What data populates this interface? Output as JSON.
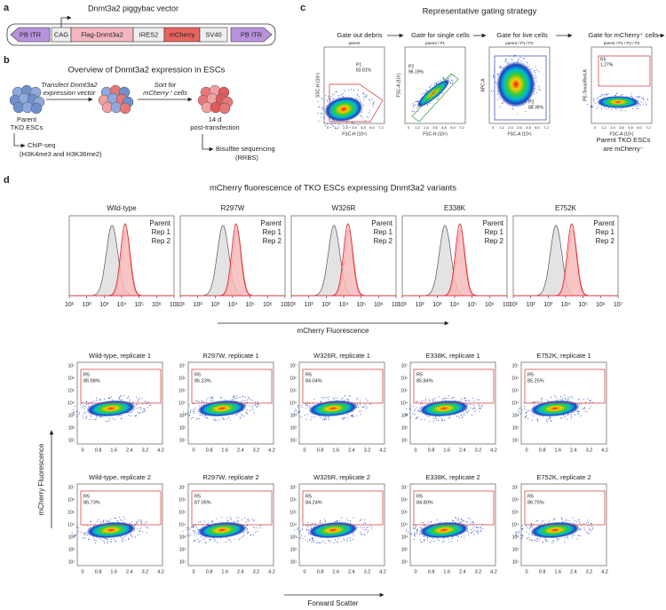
{
  "panel_labels": [
    "a",
    "b",
    "c",
    "d"
  ],
  "a": {
    "title": "Dnmt3a2 piggybac vector",
    "elements": [
      "PB ITR",
      "CAG",
      "Flag-Dnmt3a2",
      "IRES2",
      "mCherry",
      "SV40",
      "PB ITR"
    ]
  },
  "b": {
    "title": "Overview of Dnmt3a2 expression in ESCs",
    "parent": [
      "Parent",
      "TKO ESCs"
    ],
    "step1": [
      "Transfect Dnmt3a2",
      "expression vector"
    ],
    "step2": [
      "Sort for",
      "mCherry⁺ cells"
    ],
    "timepoint": [
      "14 d",
      "post-transfection"
    ],
    "assay1": [
      "ChIP-seq",
      "(H3K4me3 and H3K36me2)"
    ],
    "assay2": [
      "Bisulfite sequencing",
      "(RRBS)"
    ]
  },
  "c": {
    "title": "Representative gating strategy",
    "steps": [
      "Gate out debris",
      "Gate for single cells",
      "Gate for live cells",
      "Gate for mCherry⁺ cells"
    ],
    "xticks": [
      "0",
      "1.2",
      "2.4",
      "3.6",
      "4.8",
      "6.0",
      "7.2"
    ],
    "plots": [
      {
        "header": "parent",
        "gate": "P1",
        "percent": "83.81%",
        "x_label": "FSC-H (10⁶)",
        "y_label": "SSC-H (10⁶)"
      },
      {
        "header": "parent / P1",
        "gate": "P2",
        "percent": "96.19%",
        "x_label": "FSC-H (10⁶)",
        "y_label": "FSC-A (10⁶)"
      },
      {
        "header": "parent / P1 / P2",
        "gate": "P3",
        "percent": "98.36%",
        "x_label": "FSC-A (10⁶)",
        "y_label": "APC-A"
      },
      {
        "header": "parent / P1 / P2 / P3",
        "gate": "R5",
        "percent": "1.27%",
        "x_label": "FSC-A (10⁶)",
        "y_label": "PE-TexasRed-A"
      }
    ],
    "note": [
      "Parent TKO ESCs",
      "are mCherry⁻"
    ]
  },
  "d": {
    "title": "mCherry fluorescence of TKO ESCs expressing Dnmt3a2 variants",
    "histograms": {
      "titles": [
        "Wild-type",
        "R297W",
        "W326R",
        "E338K",
        "E752K"
      ],
      "legend": [
        "Parent",
        "Rep 1",
        "Rep 2"
      ],
      "xticks": [
        "10¹",
        "10²",
        "10³",
        "10⁴",
        "10⁵",
        "10⁶",
        "10⁷"
      ],
      "x_label": "mCherry Fluorescence"
    },
    "scatter": {
      "gate": "R5",
      "yticks": [
        "10¹",
        "10²",
        "10³",
        "10⁴",
        "10⁵",
        "10⁶",
        "10⁷"
      ],
      "xticks": [
        "0",
        "0.8",
        "1.6",
        "2.4",
        "3.2",
        "4.2"
      ],
      "y_label": "mCherry Fluorescence",
      "x_label": "Forward Scatter",
      "rows": [
        {
          "titles": [
            "Wild-type, replicate 1",
            "R297W, replicate 1",
            "W326R, replicate 1",
            "E338K, replicate 1",
            "E752K, replicate 1"
          ],
          "percents": [
            "85.98%",
            "85.23%",
            "84.04%",
            "85.84%",
            "85.25%"
          ]
        },
        {
          "titles": [
            "Wild-type, replicate 2",
            "R297W, replicate 2",
            "W326R, replicate 2",
            "E338K, replicate 2",
            "E752K, replicate 2"
          ],
          "percents": [
            "86.73%",
            "87.05%",
            "84.24%",
            "84.80%",
            "86.75%"
          ]
        }
      ]
    }
  }
}
